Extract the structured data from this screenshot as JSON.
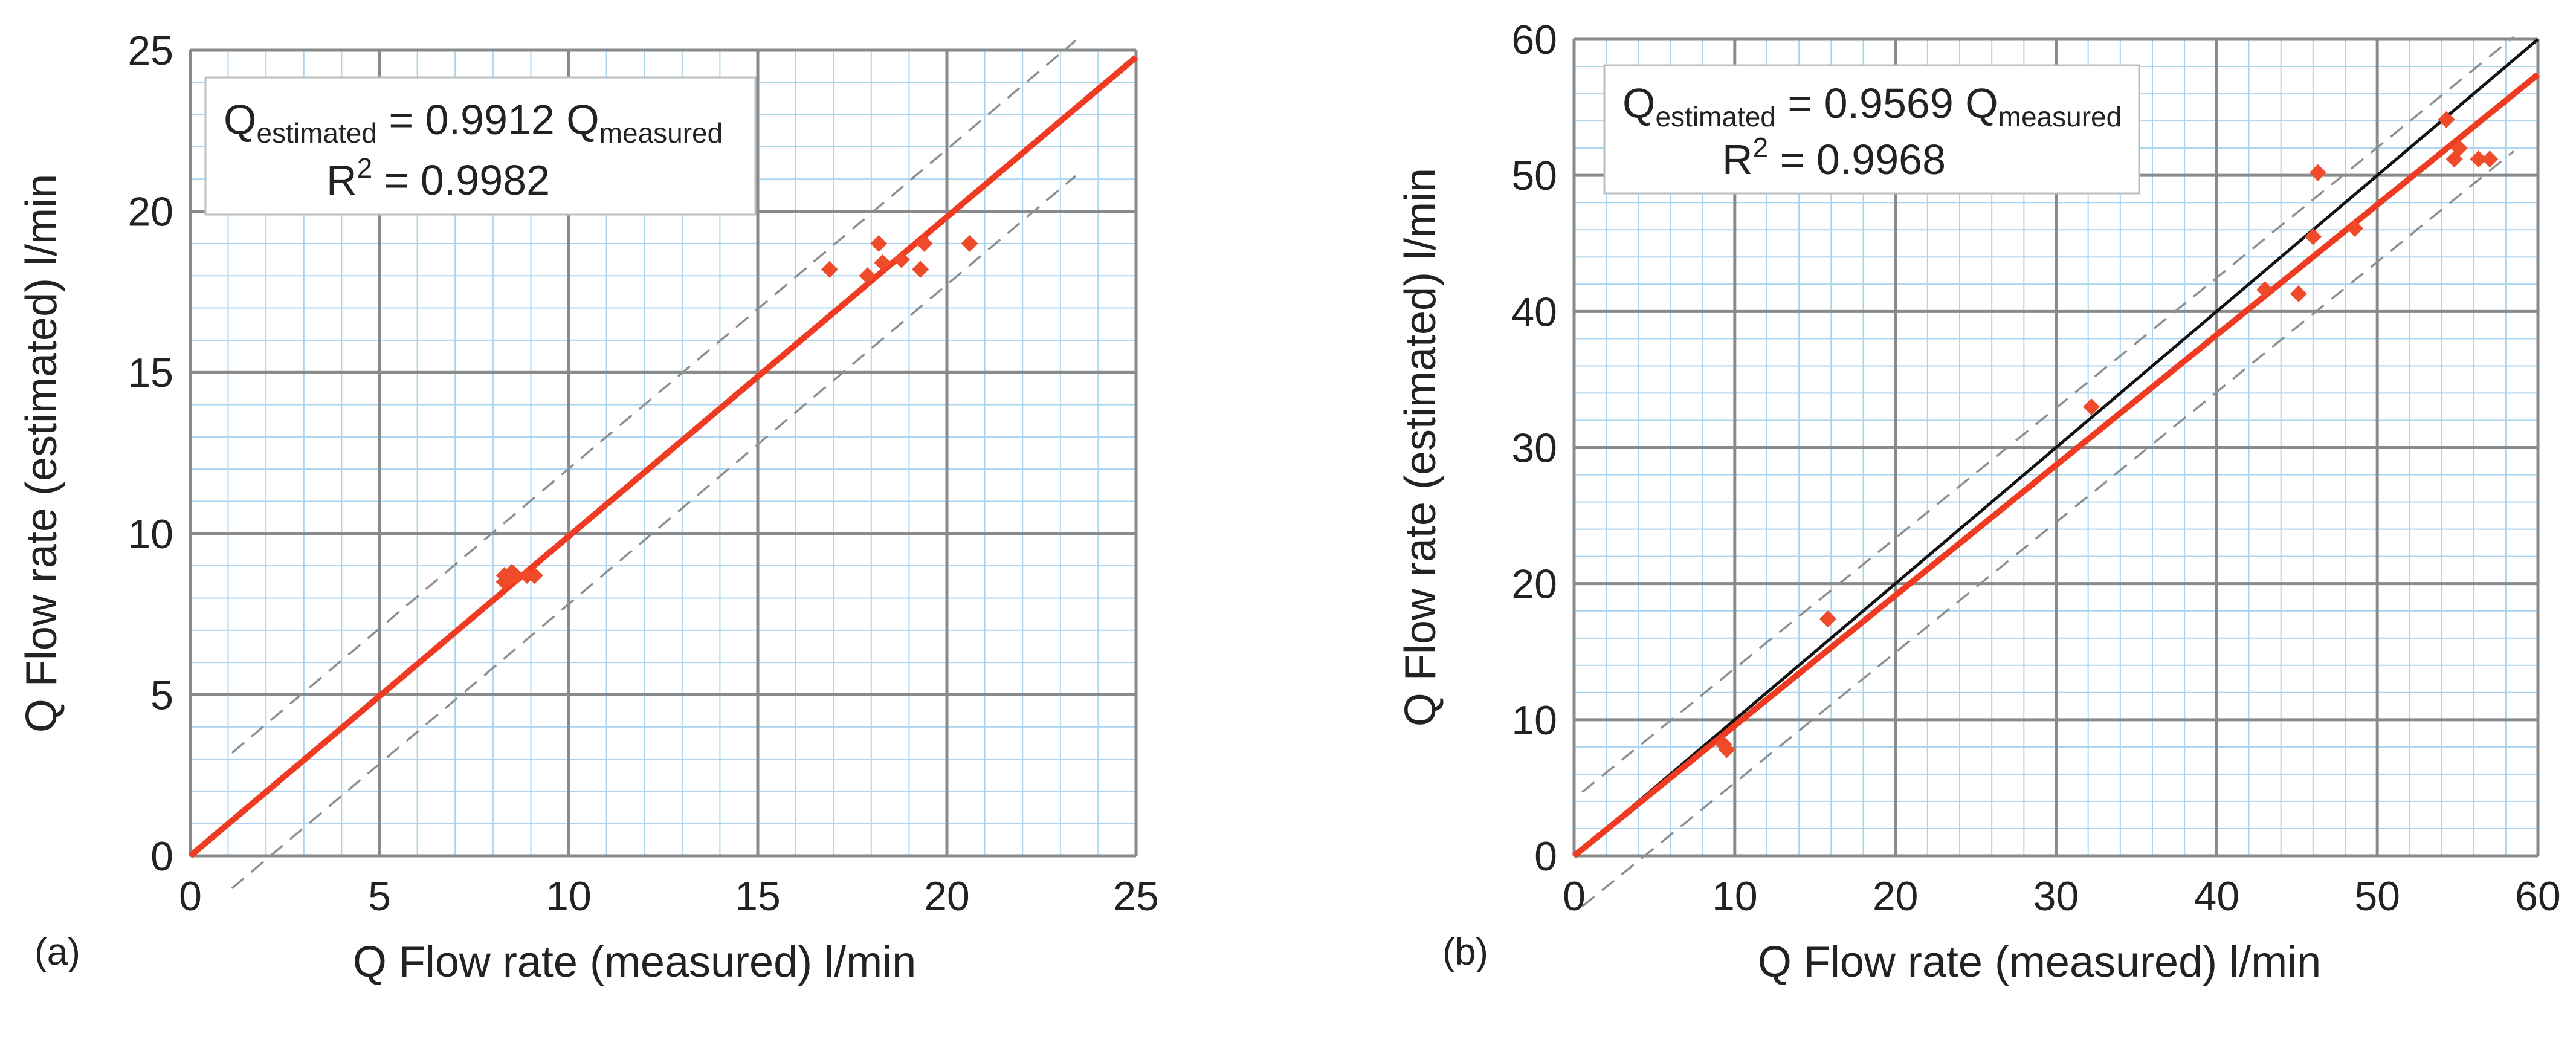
{
  "colors": {
    "minor_grid": "#a9d3ee",
    "major_grid": "#8a8a8a",
    "fit_line": "#ef3b22",
    "points": "#ef4a2a",
    "band": "#8f8f8f",
    "identity": "#111111",
    "box_border": "#bdbdbd"
  },
  "chart_data": [
    {
      "type": "scatter",
      "panel_label": "(a)",
      "xlabel": "Q Flow rate (measured) l/min",
      "ylabel": "Q Flow rate (estimated) l/min",
      "xlim": [
        0,
        25
      ],
      "ylim": [
        0,
        25
      ],
      "major_step": 5,
      "minor_step": 1,
      "x_ticks": [
        "0",
        "5",
        "10",
        "15",
        "20",
        "25"
      ],
      "y_ticks": [
        "0",
        "5",
        "10",
        "15",
        "20",
        "25"
      ],
      "equation": {
        "q": "Q",
        "sub_est": "estimated",
        "coef": " = 0.9912 Q",
        "sub_meas": "measured",
        "r": "R",
        "sup": "2",
        "r2": " = 0.9982"
      },
      "fit": {
        "slope": 0.9912,
        "intercept": 0,
        "x_range": [
          0,
          25
        ]
      },
      "identity_line": null,
      "band": {
        "offset": 2.1,
        "x_range": [
          1.1,
          23.4
        ]
      },
      "points": [
        [
          8.3,
          8.5
        ],
        [
          8.3,
          8.7
        ],
        [
          8.5,
          8.8
        ],
        [
          8.4,
          8.6
        ],
        [
          8.6,
          8.7
        ],
        [
          8.9,
          8.7
        ],
        [
          9.1,
          8.7
        ],
        [
          16.9,
          18.2
        ],
        [
          17.9,
          18.0
        ],
        [
          18.2,
          19.0
        ],
        [
          18.3,
          18.4
        ],
        [
          18.8,
          18.5
        ],
        [
          19.3,
          18.2
        ],
        [
          19.4,
          19.0
        ],
        [
          20.6,
          19.0
        ]
      ]
    },
    {
      "type": "scatter",
      "panel_label": "(b)",
      "xlabel": "Q Flow rate (measured) l/min",
      "ylabel": "Q Flow rate (estimated) l/min",
      "xlim": [
        0,
        60
      ],
      "ylim": [
        0,
        60
      ],
      "major_step": 10,
      "minor_step": 2,
      "x_ticks": [
        "0",
        "10",
        "20",
        "30",
        "40",
        "50",
        "60"
      ],
      "y_ticks": [
        "0",
        "10",
        "20",
        "30",
        "40",
        "50",
        "60"
      ],
      "equation": {
        "q": "Q",
        "sub_est": "estimated",
        "coef": " = 0.9569 Q",
        "sub_meas": "measured",
        "r": "R",
        "sup": "2",
        "r2": " = 0.9968"
      },
      "fit": {
        "slope": 0.9569,
        "intercept": 0,
        "x_range": [
          0,
          60
        ]
      },
      "identity_line": {
        "slope": 1,
        "x_range": [
          0,
          60
        ]
      },
      "band": {
        "offset": 4.2,
        "x_range": [
          0.5,
          58.5
        ]
      },
      "points": [
        [
          9.3,
          8.2
        ],
        [
          9.5,
          7.8
        ],
        [
          15.8,
          17.4
        ],
        [
          32.2,
          33.0
        ],
        [
          43.0,
          41.6
        ],
        [
          45.1,
          41.3
        ],
        [
          46.0,
          45.5
        ],
        [
          46.3,
          50.2
        ],
        [
          48.6,
          46.1
        ],
        [
          54.3,
          54.1
        ],
        [
          54.8,
          51.2
        ],
        [
          55.1,
          52.0
        ],
        [
          56.3,
          51.2
        ],
        [
          57.0,
          51.2
        ]
      ]
    }
  ]
}
